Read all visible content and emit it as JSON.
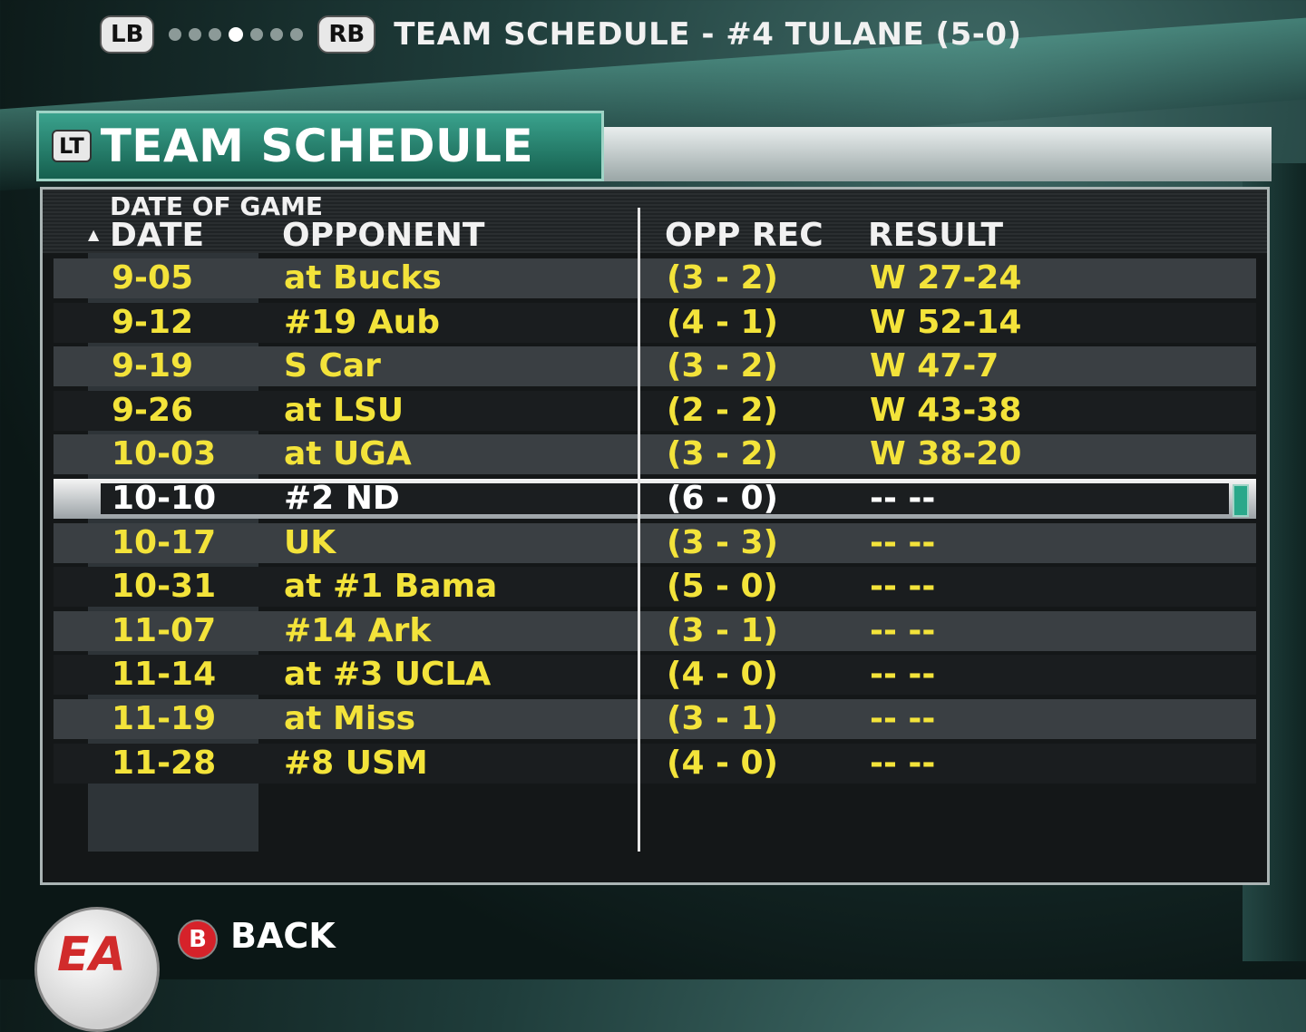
{
  "top_nav": {
    "left_bumper": "LB",
    "right_bumper": "RB",
    "page_dots": 7,
    "active_dot": 3,
    "title": "TEAM SCHEDULE - #4 TULANE (5-0)"
  },
  "panel": {
    "trigger_label": "LT",
    "title": "TEAM SCHEDULE",
    "sort_label": "DATE OF GAME",
    "columns": {
      "date": "DATE",
      "opponent": "OPPONENT",
      "opp_rec": "OPP REC",
      "result": "RESULT"
    }
  },
  "games": [
    {
      "date": "9-05",
      "opponent": "at Bucks",
      "opp_rec": "(3 - 2)",
      "result": "W 27-24"
    },
    {
      "date": "9-12",
      "opponent": "#19 Aub",
      "opp_rec": "(4 - 1)",
      "result": "W 52-14"
    },
    {
      "date": "9-19",
      "opponent": "S Car",
      "opp_rec": "(3 - 2)",
      "result": "W 47-7"
    },
    {
      "date": "9-26",
      "opponent": "at LSU",
      "opp_rec": "(2 - 2)",
      "result": "W 43-38"
    },
    {
      "date": "10-03",
      "opponent": "at UGA",
      "opp_rec": "(3 - 2)",
      "result": "W 38-20"
    },
    {
      "date": "10-10",
      "opponent": "#2 ND",
      "opp_rec": "(6 - 0)",
      "result": "-- --"
    },
    {
      "date": "10-17",
      "opponent": "UK",
      "opp_rec": "(3 - 3)",
      "result": "-- --"
    },
    {
      "date": "10-31",
      "opponent": "at #1 Bama",
      "opp_rec": "(5 - 0)",
      "result": "-- --"
    },
    {
      "date": "11-07",
      "opponent": "#14 Ark",
      "opp_rec": "(3 - 1)",
      "result": "-- --"
    },
    {
      "date": "11-14",
      "opponent": "at #3 UCLA",
      "opp_rec": "(4 - 0)",
      "result": "-- --"
    },
    {
      "date": "11-19",
      "opponent": "at Miss",
      "opp_rec": "(3 - 1)",
      "result": "-- --"
    },
    {
      "date": "11-28",
      "opponent": "#8 USM",
      "opp_rec": "(4 - 0)",
      "result": "-- --"
    }
  ],
  "selected_index": 5,
  "footer": {
    "logo_text": "EA",
    "back_button": "B",
    "back_label": "BACK"
  },
  "colors": {
    "value_text": "#f3e33a",
    "header_accent": "#2aa88a",
    "back_button": "#d6222a"
  }
}
